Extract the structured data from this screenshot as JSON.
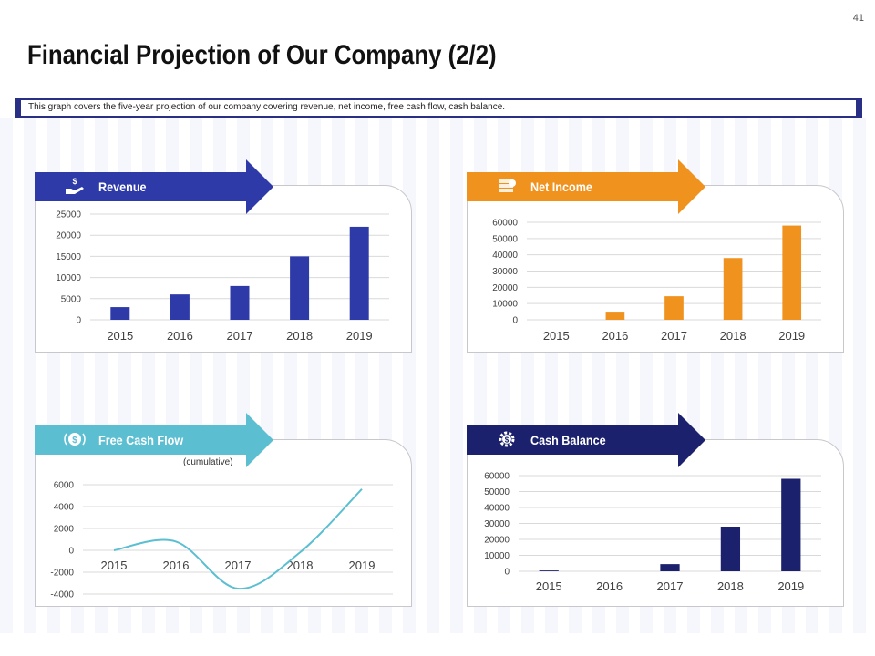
{
  "page": {
    "number": "41",
    "title": "Financial Projection of Our Company (2/2)",
    "subtitle": "This graph covers the five-year projection of our company covering revenue, net income, free cash flow, cash balance."
  },
  "colors": {
    "revenue": "#2d3aa8",
    "net_income": "#f0921e",
    "free_cash_flow": "#5bbfd1",
    "cash_balance": "#1c216d"
  },
  "panels": {
    "revenue": {
      "label": "Revenue",
      "icon": "hand-dollar-icon"
    },
    "net_income": {
      "label": "Net Income",
      "icon": "money-stack-icon"
    },
    "free_cash_flow": {
      "label": "Free Cash Flow",
      "icon": "dollar-coin-icon",
      "note": "(cumulative)"
    },
    "cash_balance": {
      "label": "Cash Balance",
      "icon": "gear-dollar-icon"
    }
  },
  "chart_data": [
    {
      "id": "revenue",
      "type": "bar",
      "title": "Revenue",
      "categories": [
        "2015",
        "2016",
        "2017",
        "2018",
        "2019"
      ],
      "values": [
        3000,
        6000,
        8000,
        15000,
        22000
      ],
      "ylim": [
        0,
        25000
      ],
      "yticks": [
        0,
        5000,
        10000,
        15000,
        20000,
        25000
      ],
      "grid": true
    },
    {
      "id": "net_income",
      "type": "bar",
      "title": "Net Income",
      "categories": [
        "2015",
        "2016",
        "2017",
        "2018",
        "2019"
      ],
      "values": [
        0,
        5000,
        14500,
        38000,
        58000
      ],
      "ylim": [
        0,
        60000
      ],
      "yticks": [
        0,
        10000,
        20000,
        30000,
        40000,
        50000,
        60000
      ],
      "grid": true
    },
    {
      "id": "free_cash_flow",
      "type": "line",
      "title": "Free Cash Flow",
      "subtitle": "(cumulative)",
      "categories": [
        "2015",
        "2016",
        "2017",
        "2018",
        "2019"
      ],
      "values": [
        0,
        800,
        -3500,
        -200,
        5600
      ],
      "ylim": [
        -4000,
        6000
      ],
      "yticks": [
        -4000,
        -2000,
        0,
        2000,
        4000,
        6000
      ],
      "ytick_labels": [
        "-4000",
        "-2000",
        "0",
        "2000",
        "4000",
        "6000"
      ],
      "smooth": true,
      "grid": true
    },
    {
      "id": "cash_balance",
      "type": "bar",
      "title": "Cash Balance",
      "categories": [
        "2015",
        "2016",
        "2017",
        "2018",
        "2019"
      ],
      "values": [
        500,
        0,
        4500,
        28000,
        58000
      ],
      "ylim": [
        0,
        60000
      ],
      "yticks": [
        0,
        10000,
        20000,
        30000,
        40000,
        50000,
        60000
      ],
      "grid": true
    }
  ]
}
